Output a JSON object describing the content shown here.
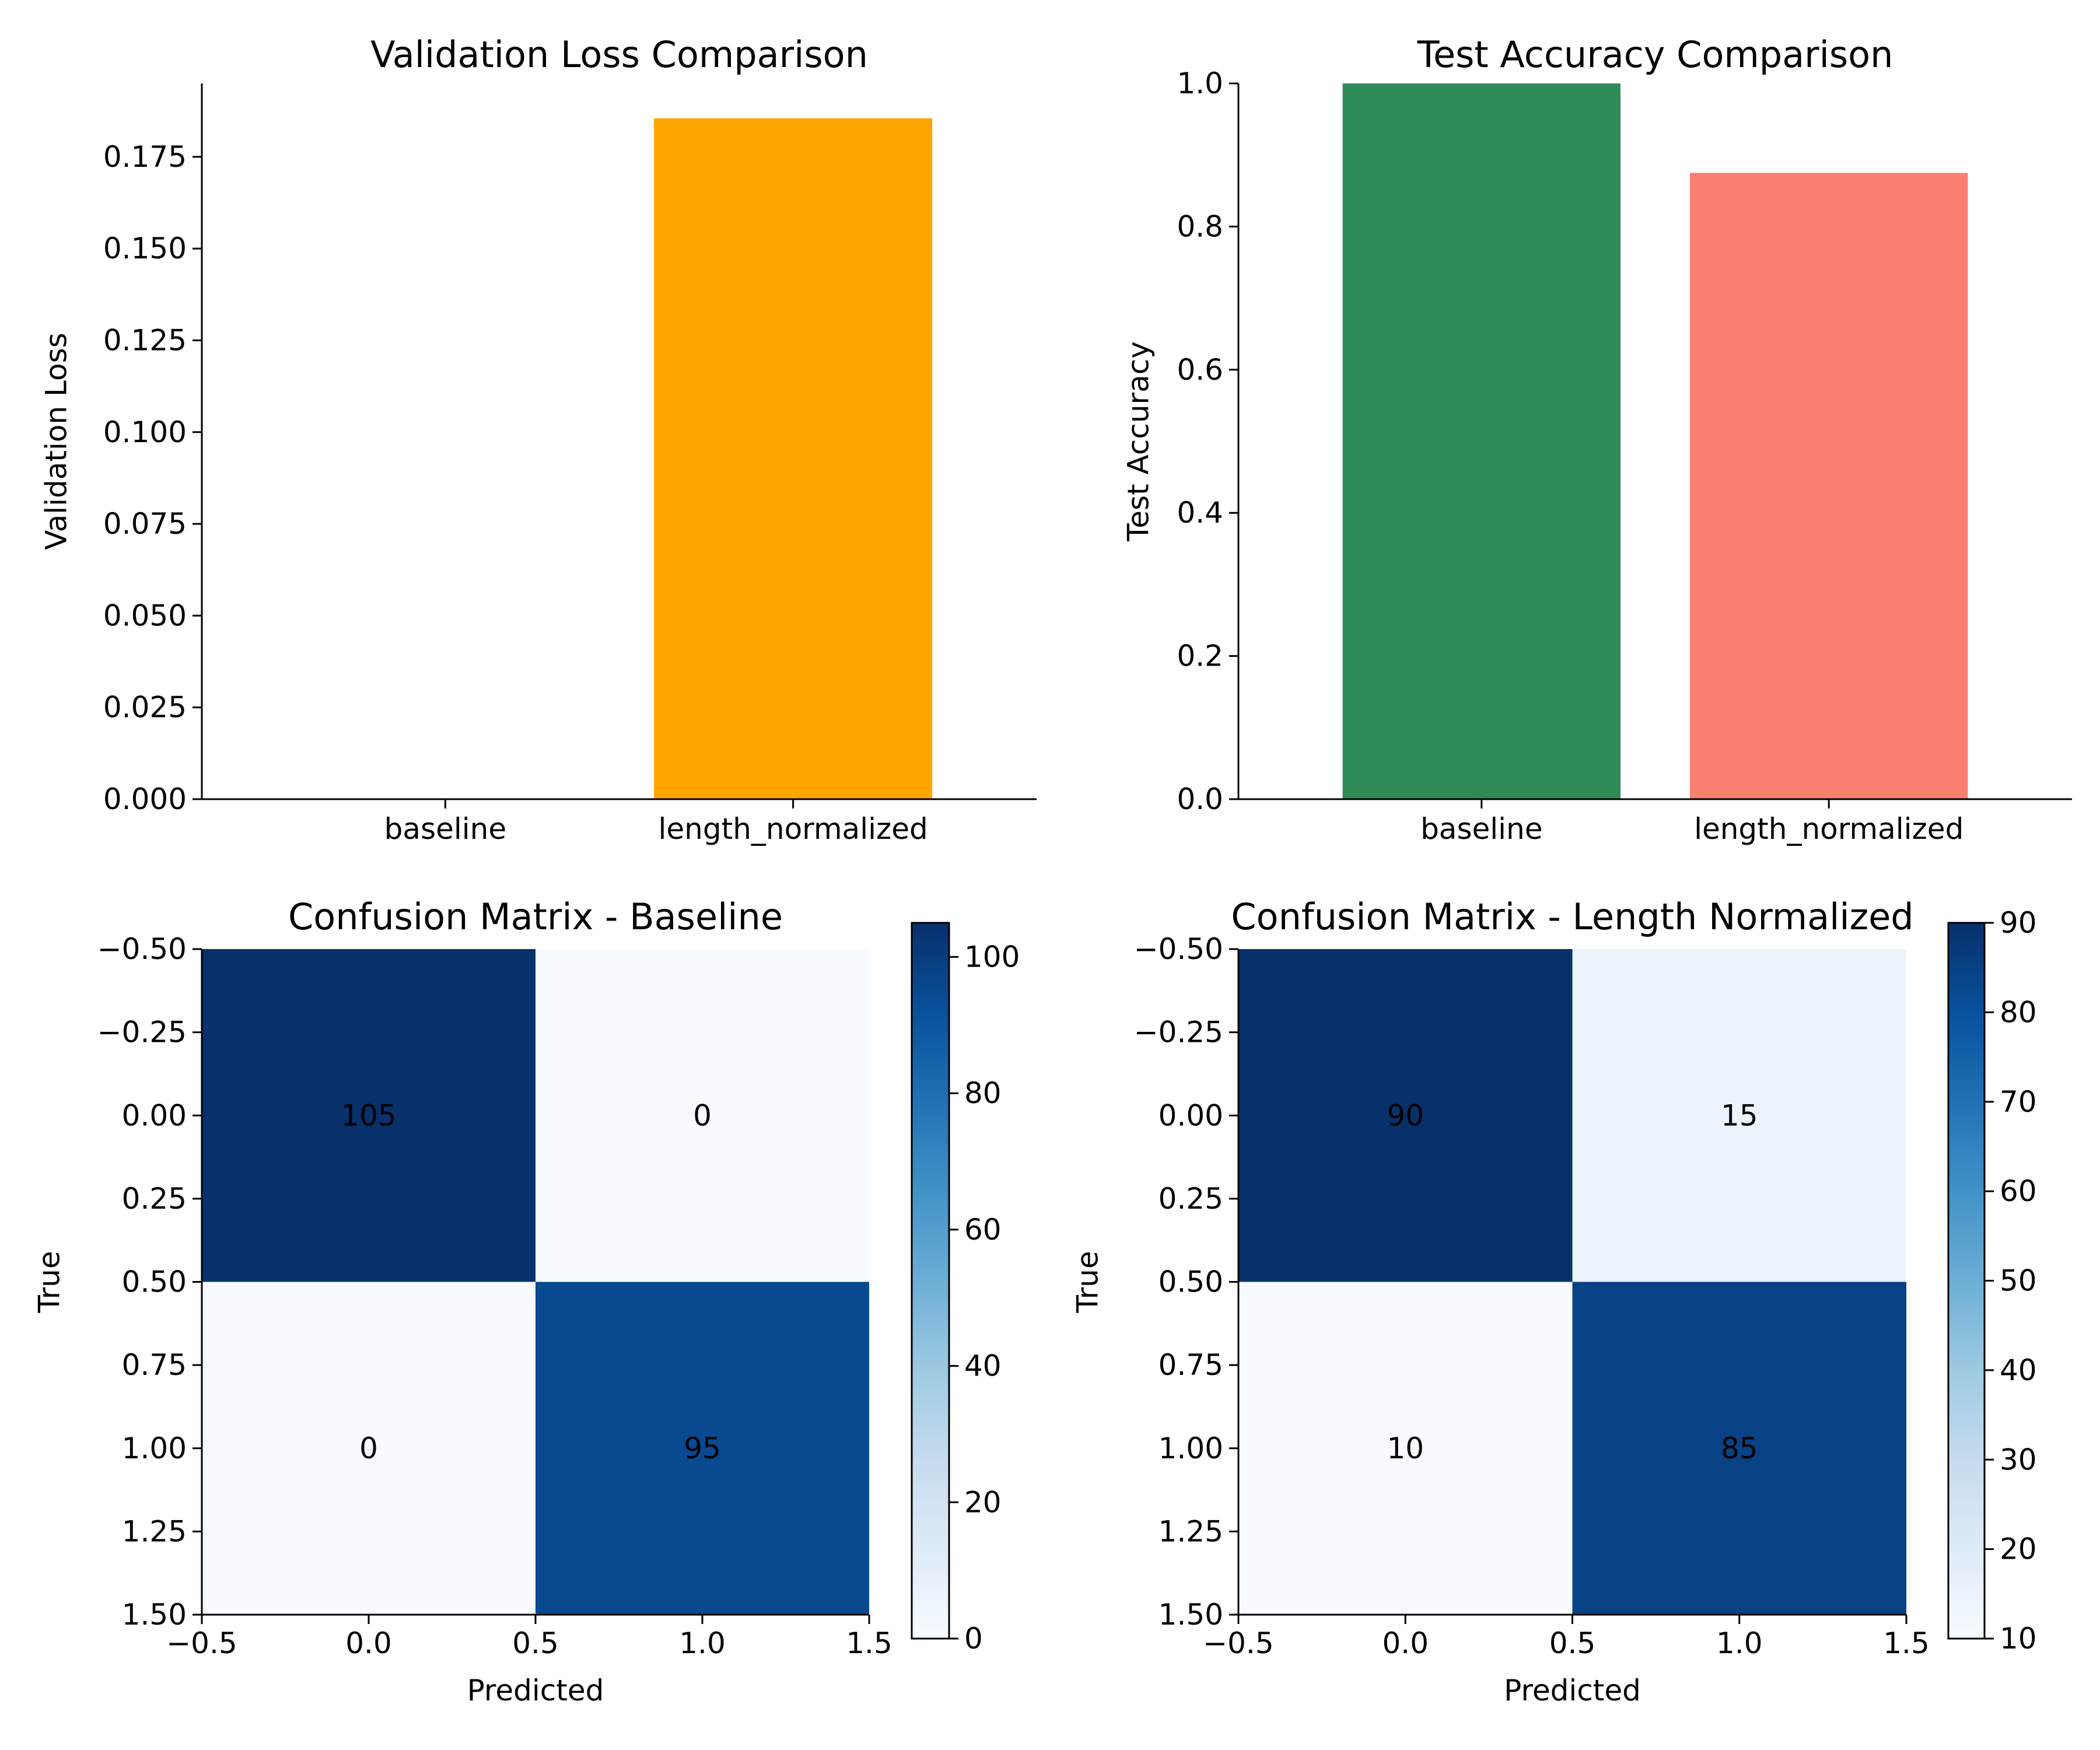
{
  "chart_data": [
    {
      "type": "bar",
      "title": "Validation Loss Comparison",
      "xlabel": "",
      "ylabel": "Validation Loss",
      "categories": [
        "baseline",
        "length_normalized"
      ],
      "values": [
        0.0,
        0.1855
      ],
      "colors": [
        "#ffa500",
        "#ffa500"
      ],
      "ylim": [
        0,
        0.195
      ],
      "yticks": [
        0.0,
        0.025,
        0.05,
        0.075,
        0.1,
        0.125,
        0.15,
        0.175
      ],
      "ytick_labels": [
        "0.000",
        "0.025",
        "0.050",
        "0.075",
        "0.100",
        "0.125",
        "0.150",
        "0.175"
      ],
      "grid": false
    },
    {
      "type": "bar",
      "title": "Test Accuracy Comparison",
      "xlabel": "",
      "ylabel": "Test Accuracy",
      "categories": [
        "baseline",
        "length_normalized"
      ],
      "values": [
        1.0,
        0.875
      ],
      "colors": [
        "#2e8b57",
        "#fa8072"
      ],
      "ylim": [
        0,
        1.0
      ],
      "yticks": [
        0.0,
        0.2,
        0.4,
        0.6,
        0.8,
        1.0
      ],
      "ytick_labels": [
        "0.0",
        "0.2",
        "0.4",
        "0.6",
        "0.8",
        "1.0"
      ],
      "grid": false
    },
    {
      "type": "heatmap",
      "title": "Confusion Matrix - Baseline",
      "xlabel": "Predicted",
      "ylabel": "True",
      "matrix": [
        [
          105,
          0
        ],
        [
          0,
          95
        ]
      ],
      "colormap": "Blues",
      "vmin": 0,
      "vmax": 105,
      "xlim": [
        -0.5,
        1.5
      ],
      "ylim": [
        -0.5,
        1.5
      ],
      "xticks": [
        -0.5,
        0.0,
        0.5,
        1.0,
        1.5
      ],
      "xtick_labels": [
        "−0.5",
        "0.0",
        "0.5",
        "1.0",
        "1.5"
      ],
      "yticks": [
        -0.5,
        -0.25,
        0.0,
        0.25,
        0.5,
        0.75,
        1.0,
        1.25,
        1.5
      ],
      "ytick_labels": [
        "−0.50",
        "−0.25",
        "0.00",
        "0.25",
        "0.50",
        "0.75",
        "1.00",
        "1.25",
        "1.50"
      ],
      "colorbar_ticks": [
        0,
        20,
        40,
        60,
        80,
        100
      ],
      "colorbar_tick_labels": [
        "0",
        "20",
        "40",
        "60",
        "80",
        "100"
      ]
    },
    {
      "type": "heatmap",
      "title": "Confusion Matrix - Length Normalized",
      "xlabel": "Predicted",
      "ylabel": "True",
      "matrix": [
        [
          90,
          15
        ],
        [
          10,
          85
        ]
      ],
      "colormap": "Blues",
      "vmin": 10,
      "vmax": 90,
      "xlim": [
        -0.5,
        1.5
      ],
      "ylim": [
        -0.5,
        1.5
      ],
      "xticks": [
        -0.5,
        0.0,
        0.5,
        1.0,
        1.5
      ],
      "xtick_labels": [
        "−0.5",
        "0.0",
        "0.5",
        "1.0",
        "1.5"
      ],
      "yticks": [
        -0.5,
        -0.25,
        0.0,
        0.25,
        0.5,
        0.75,
        1.0,
        1.25,
        1.5
      ],
      "ytick_labels": [
        "−0.50",
        "−0.25",
        "0.00",
        "0.25",
        "0.50",
        "0.75",
        "1.00",
        "1.25",
        "1.50"
      ],
      "colorbar_ticks": [
        10,
        20,
        30,
        40,
        50,
        60,
        70,
        80,
        90
      ],
      "colorbar_tick_labels": [
        "10",
        "20",
        "30",
        "40",
        "50",
        "60",
        "70",
        "80",
        "90"
      ]
    }
  ]
}
